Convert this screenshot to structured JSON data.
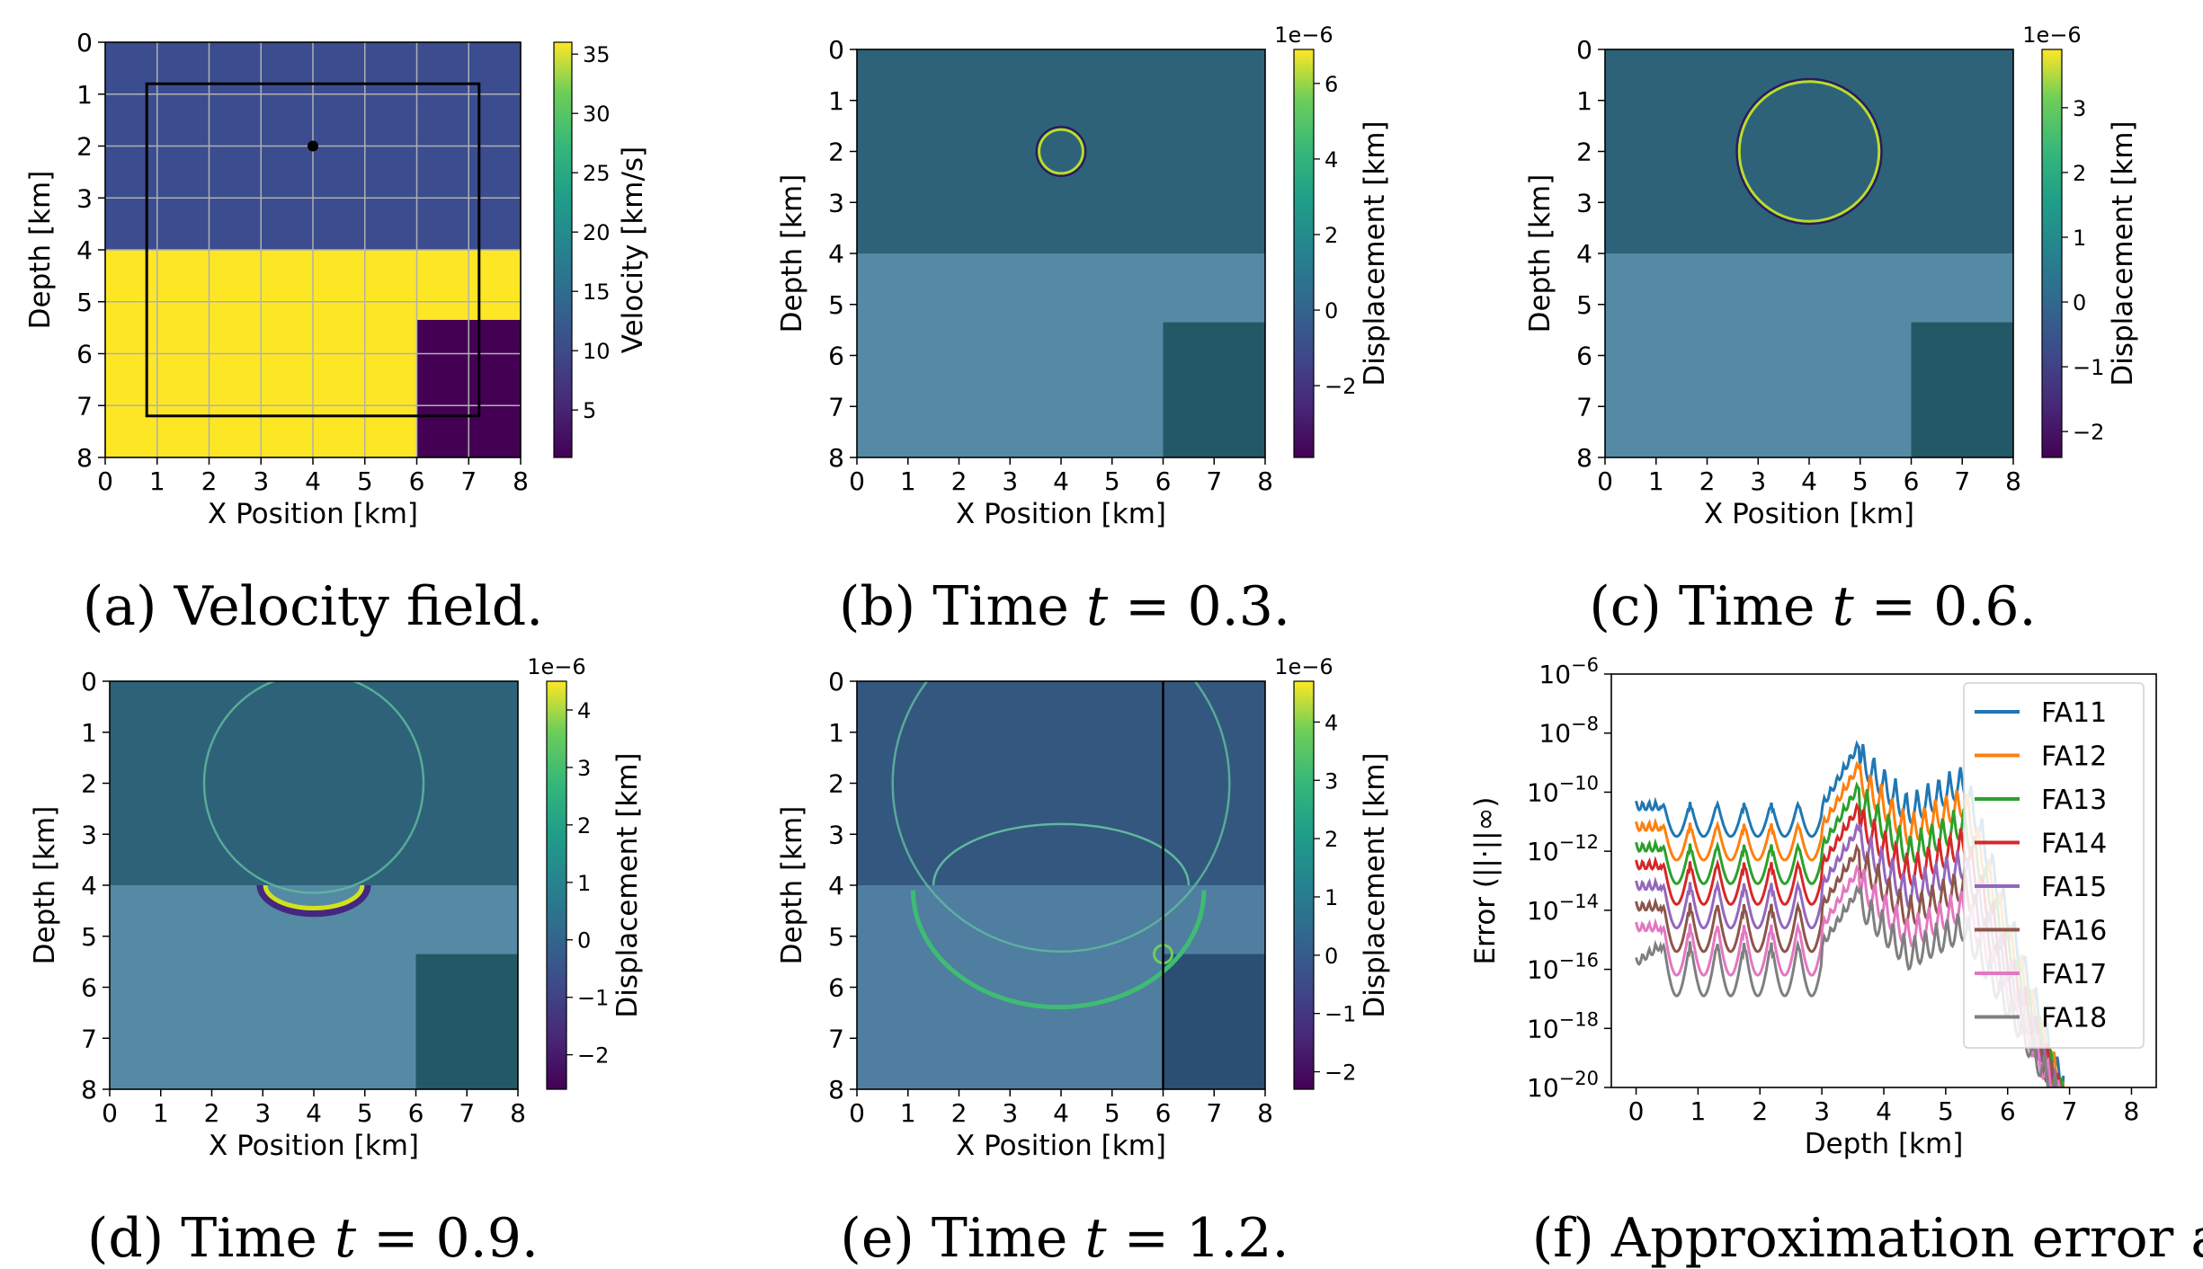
{
  "figure": {
    "captions": [
      {
        "label": "(a) Velocity field."
      },
      {
        "prefix": "(b) Time",
        "var": "t",
        "rest": "= 0.3."
      },
      {
        "prefix": "(c) Time",
        "var": "t",
        "rest": "= 0.6."
      },
      {
        "prefix": "(d) Time",
        "var": "t",
        "rest": "= 0.9."
      },
      {
        "prefix": "(e) Time",
        "var": "t",
        "rest": "= 1.2."
      },
      {
        "label": "(f) Approximation error at"
      }
    ]
  },
  "colors": {
    "viridis_dark": "#440154",
    "viridis_mid": "#21918c",
    "viridis_bright": "#fde725",
    "upper_layer_a": "#3b4d8f",
    "lower_layer_a": "#fde725",
    "block_a": "#440154",
    "upper_wave": "#2e6279",
    "lower_wave": "#548aa4",
    "block_wave": "#235867"
  },
  "chart_data": [
    {
      "type": "heatmap",
      "id": "a",
      "xlabel": "X Position [km]",
      "ylabel": "Depth [km]",
      "xlim": [
        0,
        8
      ],
      "ylim": [
        8,
        0
      ],
      "xticks": [
        "0",
        "1",
        "2",
        "3",
        "4",
        "5",
        "6",
        "7",
        "8"
      ],
      "yticks": [
        "0",
        "1",
        "2",
        "3",
        "4",
        "5",
        "6",
        "7",
        "8"
      ],
      "grid": true,
      "regions": [
        {
          "name": "upper layer",
          "x": [
            0,
            8
          ],
          "y": [
            0,
            4
          ],
          "value": 10
        },
        {
          "name": "lower layer",
          "x": [
            0,
            8
          ],
          "y": [
            4,
            8
          ],
          "value": 35
        },
        {
          "name": "block",
          "x": [
            6,
            8
          ],
          "y": [
            5.35,
            8
          ],
          "value": 1
        }
      ],
      "box": {
        "x": [
          0.8,
          7.2
        ],
        "y": [
          0.8,
          7.2
        ]
      },
      "source": {
        "x": 4,
        "y": 2
      },
      "colorbar": {
        "label": "Velocity [km/s]",
        "ticks": [
          "5",
          "10",
          "15",
          "20",
          "25",
          "30",
          "35"
        ],
        "tick_values": [
          5,
          10,
          15,
          20,
          25,
          30,
          35
        ],
        "range": [
          1,
          36
        ],
        "exponent": ""
      }
    },
    {
      "type": "heatmap",
      "id": "b",
      "xlabel": "X Position [km]",
      "ylabel": "Depth [km]",
      "xlim": [
        0,
        8
      ],
      "ylim": [
        8,
        0
      ],
      "xticks": [
        "0",
        "1",
        "2",
        "3",
        "4",
        "5",
        "6",
        "7",
        "8"
      ],
      "yticks": [
        "0",
        "1",
        "2",
        "3",
        "4",
        "5",
        "6",
        "7",
        "8"
      ],
      "grid": false,
      "wavefronts": [
        {
          "cx": 4,
          "cy": 2,
          "r": 0.43
        }
      ],
      "colorbar": {
        "label": "Displacement [km]",
        "ticks": [
          "−2",
          "0",
          "2",
          "4",
          "6"
        ],
        "tick_values": [
          -2,
          0,
          2,
          4,
          6
        ],
        "range": [
          -3.9,
          6.9
        ],
        "exponent": "1e−6"
      }
    },
    {
      "type": "heatmap",
      "id": "c",
      "xlabel": "X Position [km]",
      "ylabel": "Depth [km]",
      "xlim": [
        0,
        8
      ],
      "ylim": [
        8,
        0
      ],
      "xticks": [
        "0",
        "1",
        "2",
        "3",
        "4",
        "5",
        "6",
        "7",
        "8"
      ],
      "yticks": [
        "0",
        "1",
        "2",
        "3",
        "4",
        "5",
        "6",
        "7",
        "8"
      ],
      "grid": false,
      "wavefronts": [
        {
          "cx": 4,
          "cy": 2,
          "r": 1.37
        }
      ],
      "colorbar": {
        "label": "Displacement [km]",
        "ticks": [
          "−2",
          "−1",
          "0",
          "1",
          "2",
          "3"
        ],
        "tick_values": [
          -2,
          -1,
          0,
          1,
          2,
          3
        ],
        "range": [
          -2.4,
          3.9
        ],
        "exponent": "1e−6"
      }
    },
    {
      "type": "heatmap",
      "id": "d",
      "xlabel": "X Position [km]",
      "ylabel": "Depth [km]",
      "xlim": [
        0,
        8
      ],
      "ylim": [
        8,
        0
      ],
      "xticks": [
        "0",
        "1",
        "2",
        "3",
        "4",
        "5",
        "6",
        "7",
        "8"
      ],
      "yticks": [
        "0",
        "1",
        "2",
        "3",
        "4",
        "5",
        "6",
        "7",
        "8"
      ],
      "grid": false,
      "wavefronts": [
        {
          "cx": 4,
          "cy": 2,
          "r": 2.15
        }
      ],
      "colorbar": {
        "label": "Displacement [km]",
        "ticks": [
          "−2",
          "−1",
          "0",
          "1",
          "2",
          "3",
          "4"
        ],
        "tick_values": [
          -2,
          -1,
          0,
          1,
          2,
          3,
          4
        ],
        "range": [
          -2.6,
          4.5
        ],
        "exponent": "1e−6"
      }
    },
    {
      "type": "heatmap",
      "id": "e",
      "xlabel": "X Position [km]",
      "ylabel": "Depth [km]",
      "xlim": [
        0,
        8
      ],
      "ylim": [
        8,
        0
      ],
      "xticks": [
        "0",
        "1",
        "2",
        "3",
        "4",
        "5",
        "6",
        "7",
        "8"
      ],
      "yticks": [
        "0",
        "1",
        "2",
        "3",
        "4",
        "5",
        "6",
        "7",
        "8"
      ],
      "grid": false,
      "wavefronts": [
        {
          "cx": 4,
          "cy": 2,
          "r": 3.3
        }
      ],
      "vline_x": 6,
      "colorbar": {
        "label": "Displacement [km]",
        "ticks": [
          "−2",
          "−1",
          "0",
          "1",
          "2",
          "3",
          "4"
        ],
        "tick_values": [
          -2,
          -1,
          0,
          1,
          2,
          3,
          4
        ],
        "range": [
          -2.3,
          4.7
        ],
        "exponent": "1e−6"
      }
    },
    {
      "type": "line",
      "id": "f",
      "xlabel": "Depth [km]",
      "ylabel": "Error (||·||∞)",
      "xlim": [
        -0.4,
        8.4
      ],
      "ylim_log10": [
        -20,
        -6
      ],
      "xticks": [
        "0",
        "1",
        "2",
        "3",
        "4",
        "5",
        "6",
        "7",
        "8"
      ],
      "yticks_exp": [
        "−6",
        "−8",
        "−10",
        "−12",
        "−14",
        "−16",
        "−18",
        "−20"
      ],
      "ytick_base": "10",
      "legend_position": "upper right",
      "series": [
        {
          "name": "FA11",
          "color": "#1f77b4",
          "log10_levels": [
            -10.3,
            -10.3,
            -10.3,
            -8.2,
            -10.0,
            -9.0,
            -19.5
          ]
        },
        {
          "name": "FA12",
          "color": "#ff7f0e",
          "log10_levels": [
            -11.0,
            -11.0,
            -11.0,
            -8.9,
            -10.7,
            -9.7,
            -19.7
          ]
        },
        {
          "name": "FA13",
          "color": "#2ca02c",
          "log10_levels": [
            -11.7,
            -11.7,
            -11.7,
            -9.6,
            -11.4,
            -10.4,
            -19.8
          ]
        },
        {
          "name": "FA14",
          "color": "#d62728",
          "log10_levels": [
            -12.3,
            -12.3,
            -12.3,
            -10.3,
            -12.1,
            -11.1,
            -19.9
          ]
        },
        {
          "name": "FA15",
          "color": "#9467bd",
          "log10_levels": [
            -13.0,
            -13.0,
            -13.0,
            -11.0,
            -12.8,
            -11.8,
            -20.0
          ]
        },
        {
          "name": "FA16",
          "color": "#8c564b",
          "log10_levels": [
            -13.7,
            -13.7,
            -13.7,
            -11.7,
            -13.5,
            -12.5,
            -20.0
          ]
        },
        {
          "name": "FA17",
          "color": "#e377c2",
          "log10_levels": [
            -14.4,
            -14.4,
            -14.4,
            -12.4,
            -14.2,
            -13.2,
            -20.0
          ]
        },
        {
          "name": "FA18",
          "color": "#7f7f7f",
          "log10_levels": [
            -15.6,
            -15.0,
            -15.0,
            -13.1,
            -14.9,
            -13.9,
            -20.0
          ]
        }
      ],
      "breakpoints_x": [
        0,
        0.4,
        3.0,
        3.6,
        4.4,
        5.3,
        6.9
      ]
    }
  ]
}
